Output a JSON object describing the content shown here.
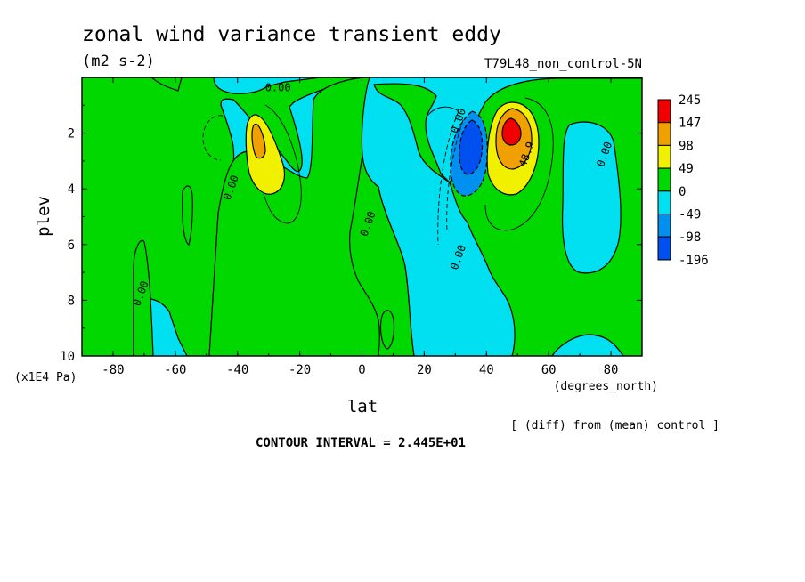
{
  "chart_data": {
    "type": "contour",
    "title": "zonal wind variance transient eddy",
    "units": "(m2 s-2)",
    "run_label": "T79L48_non_control-5N",
    "xlabel": "lat",
    "x_units": "(degrees_north)",
    "ylabel": "plev",
    "y_units": "(x1E4 Pa)",
    "xlim": [
      -90,
      90
    ],
    "ylim": [
      10,
      0
    ],
    "x_ticks": [
      {
        "v": -80,
        "label": "-80"
      },
      {
        "v": -60,
        "label": "-60"
      },
      {
        "v": -40,
        "label": "-40"
      },
      {
        "v": -20,
        "label": "-20"
      },
      {
        "v": 0,
        "label": "0"
      },
      {
        "v": 20,
        "label": "20"
      },
      {
        "v": 40,
        "label": "40"
      },
      {
        "v": 60,
        "label": "60"
      },
      {
        "v": 80,
        "label": "80"
      }
    ],
    "y_ticks": [
      {
        "v": 2,
        "label": "2"
      },
      {
        "v": 4,
        "label": "4"
      },
      {
        "v": 6,
        "label": "6"
      },
      {
        "v": 8,
        "label": "8"
      },
      {
        "v": 10,
        "label": "10"
      }
    ],
    "colorbar": [
      {
        "label": "245",
        "color": "#f00000"
      },
      {
        "label": "147",
        "color": "#f0a000"
      },
      {
        "label": "98",
        "color": "#f0f000"
      },
      {
        "label": "49",
        "color": "#00d800"
      },
      {
        "label": "0",
        "color": "#00e0f0"
      },
      {
        "label": "-49",
        "color": "#0090f0"
      },
      {
        "label": "-98",
        "color": "#0050f0"
      },
      {
        "label": "-196",
        "color": ""
      }
    ],
    "contour_labels": [
      {
        "text": "0.00",
        "lat": -27,
        "p": 0.5
      },
      {
        "text": "0.00",
        "lat": -41,
        "p": 4.0
      },
      {
        "text": "0.00",
        "lat": -70,
        "p": 7.8
      },
      {
        "text": "0.00",
        "lat": 3,
        "p": 5.3
      },
      {
        "text": "0.00",
        "lat": 32,
        "p": 1.6
      },
      {
        "text": "0.00",
        "lat": 32,
        "p": 6.5
      },
      {
        "text": "48.9",
        "lat": 54,
        "p": 2.8
      },
      {
        "text": "0.00",
        "lat": 79,
        "p": 2.8
      }
    ],
    "contour_interval_text": "CONTOUR INTERVAL = 2.445E+01",
    "note": "[ (diff) from (mean) control ]"
  }
}
